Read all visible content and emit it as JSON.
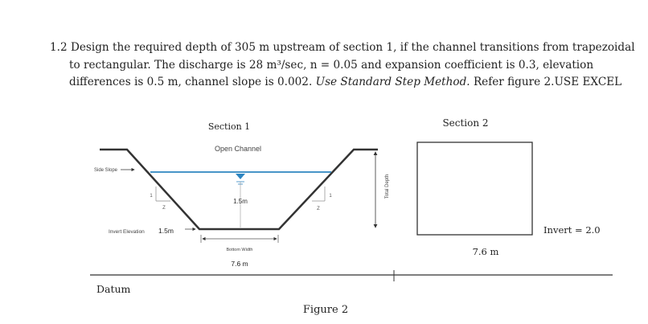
{
  "problem": {
    "number": "1.2",
    "line1": "Design the required depth of 305 m upstream of section 1, if the channel transitions from trapezoidal",
    "line2": "to rectangular. The discharge is 28 m³/sec, n = 0.05 and expansion coefficient is 0.3, elevation",
    "line3_prefix": "differences is 0.5 m, channel slope is 0.002.",
    "line3_italic": "Use Standard Step Method.",
    "line3_suffix": "Refer figure 2.USE EXCEL"
  },
  "figure": {
    "section1_label": "Section 1",
    "open_channel_label": "Open Channel",
    "side_slope_label": "Side Slope",
    "slope_one": "1",
    "slope_z": "Z",
    "depth_value": "1.5m",
    "invert_elevation_label": "Invert Elevation",
    "invert_elevation_value": "1.5m",
    "bottom_width_label": "Bottom Width",
    "bottom_width_value": "7.6 m",
    "total_depth_label": "Total Depth",
    "section2_label": "Section 2",
    "section2_width": "7.6 m",
    "invert2_label": "Invert = 2.0",
    "datum_label": "Datum",
    "caption": "Figure 2"
  },
  "colors": {
    "water": "#2e86c1",
    "ink": "#333333"
  }
}
